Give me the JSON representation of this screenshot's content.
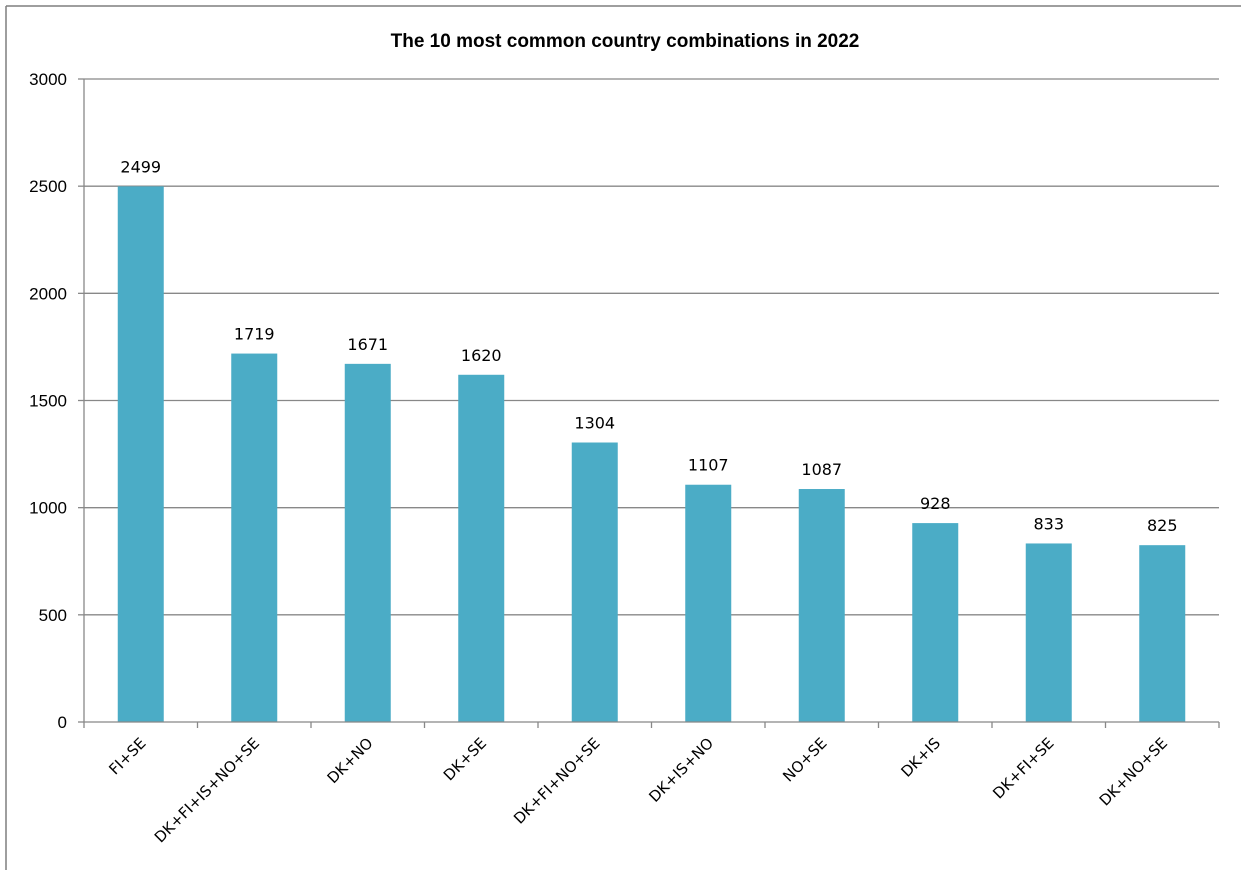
{
  "chart_data": {
    "type": "bar",
    "title": "The 10 most common country combinations in 2022",
    "xlabel": "",
    "ylabel": "",
    "categories": [
      "FI+SE",
      "DK+FI+IS+NO+SE",
      "DK+NO",
      "DK+SE",
      "DK+FI+NO+SE",
      "DK+IS+NO",
      "NO+SE",
      "DK+IS",
      "DK+FI+SE",
      "DK+NO+SE"
    ],
    "values": [
      2499,
      1719,
      1671,
      1620,
      1304,
      1107,
      1087,
      928,
      833,
      825
    ],
    "ylim": [
      0,
      3000
    ],
    "yticks": [
      0,
      500,
      1000,
      1500,
      2000,
      2500,
      3000
    ],
    "grid": true,
    "legend": "none",
    "colors": {
      "bar": "#4bacc6",
      "grid": "#888888",
      "axis": "#888888",
      "border": "#7f7f7f"
    }
  }
}
